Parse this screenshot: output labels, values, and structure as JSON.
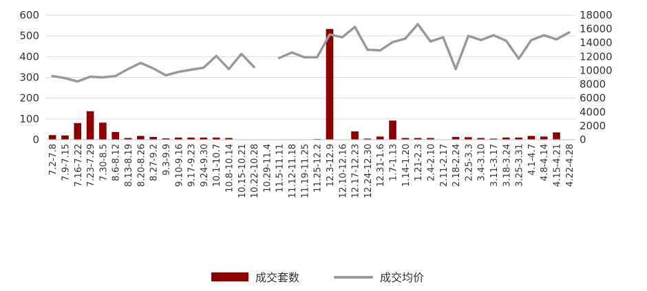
{
  "chart_data": {
    "type": "bar+line",
    "title": "",
    "xlabel": "",
    "ylabel": "",
    "categories": [
      "7.2-7.8",
      "7.9-7.15",
      "7.16-7.22",
      "7.23-7.29",
      "7.30-8.5",
      "8.6-8.12",
      "8.13-8.19",
      "8.20-8.26",
      "8.27-9.2",
      "9.3-9.9",
      "9.10-9.16",
      "9.17-9.23",
      "9.24-9.30",
      "10.1-10.7",
      "10.8-10.14",
      "10.15-10.21",
      "10.22-10.28",
      "10.29-11.4",
      "11.5-11.11",
      "11.12-11.18",
      "11.19-11.25",
      "11.25-12.2",
      "12.3-12.9",
      "12.10-12.16",
      "12.17-12.23",
      "12.24-12.30",
      "12.31-1.6",
      "1.7-1.13",
      "1.14-1.20",
      "1.21-2.3",
      "2.4-2.10",
      "2.11-2.17",
      "2.18-2.24",
      "2.25-3.3",
      "3.4-3.10",
      "3.11-3.17",
      "3.18-3.24",
      "3.25-3.31",
      "4.1-4.7",
      "4.8-4.14",
      "4.15-4.21",
      "4.22-4.28"
    ],
    "series": [
      {
        "name": "成交套数",
        "type": "bar",
        "axis": "left",
        "color": "#8B0000",
        "values": [
          22,
          20,
          80,
          137,
          82,
          37,
          8,
          18,
          13,
          6,
          10,
          10,
          10,
          10,
          8,
          null,
          null,
          null,
          null,
          null,
          null,
          3,
          533,
          null,
          40,
          5,
          15,
          92,
          8,
          8,
          8,
          null,
          13,
          12,
          8,
          5,
          10,
          10,
          18,
          15,
          35,
          null
        ]
      },
      {
        "name": "成交均价",
        "type": "line",
        "axis": "right",
        "color": "#999999",
        "values": [
          9200,
          8900,
          8400,
          9100,
          9000,
          9200,
          10200,
          11100,
          10300,
          9300,
          9800,
          10100,
          10400,
          12100,
          10200,
          12400,
          10500,
          null,
          11800,
          12600,
          11900,
          11900,
          15200,
          14800,
          16300,
          13000,
          12900,
          14100,
          14600,
          16700,
          14200,
          14800,
          10200,
          15000,
          14400,
          15100,
          14300,
          11700,
          14400,
          15100,
          14500,
          15500
        ]
      }
    ],
    "y_left": {
      "min": 0,
      "max": 600,
      "ticks": [
        0,
        100,
        200,
        300,
        400,
        500,
        600
      ]
    },
    "y_right": {
      "min": 0,
      "max": 18000,
      "ticks": [
        0,
        2000,
        4000,
        6000,
        8000,
        10000,
        12000,
        14000,
        16000,
        18000
      ]
    },
    "legend": {
      "position": "bottom",
      "items": [
        {
          "label": "成交套数",
          "kind": "bar",
          "color": "#8B0000"
        },
        {
          "label": "成交均价",
          "kind": "line",
          "color": "#999999"
        }
      ]
    },
    "grid": {
      "horizontal": true,
      "color": "#d9d9d9"
    }
  }
}
